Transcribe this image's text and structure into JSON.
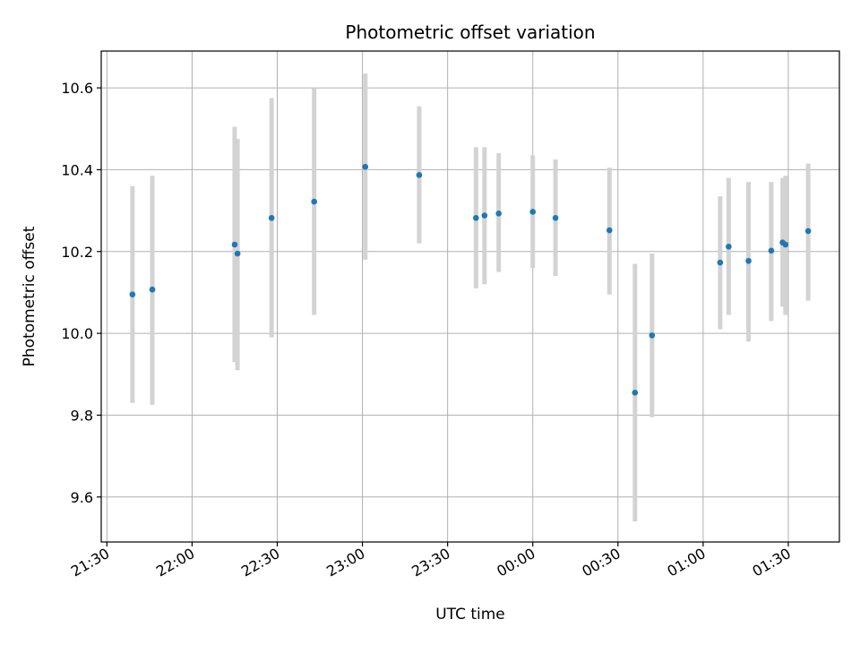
{
  "chart_data": {
    "type": "scatter",
    "title": "Photometric offset variation",
    "xlabel": "UTC time",
    "ylabel": "Photometric offset",
    "x_ticks": [
      "21:30",
      "22:00",
      "22:30",
      "23:00",
      "23:30",
      "00:00",
      "00:30",
      "01:00",
      "01:30"
    ],
    "y_ticks": [
      "9.6",
      "9.8",
      "10.0",
      "10.2",
      "10.4",
      "10.6"
    ],
    "ylim": [
      9.49,
      10.69
    ],
    "xlim": [
      "21:28",
      "01:48"
    ],
    "grid": true,
    "colors": {
      "point": "#1f77b4",
      "errorbar": "#d3d3d3",
      "grid": "#b0b0b0"
    },
    "points": [
      {
        "time": "21:39",
        "value": 10.095,
        "err_low": 9.83,
        "err_high": 10.36
      },
      {
        "time": "21:46",
        "value": 10.107,
        "err_low": 9.825,
        "err_high": 10.385
      },
      {
        "time": "22:15",
        "value": 10.217,
        "err_low": 9.93,
        "err_high": 10.505
      },
      {
        "time": "22:16",
        "value": 10.195,
        "err_low": 9.91,
        "err_high": 10.475
      },
      {
        "time": "22:28",
        "value": 10.282,
        "err_low": 9.99,
        "err_high": 10.575
      },
      {
        "time": "22:43",
        "value": 10.322,
        "err_low": 10.045,
        "err_high": 10.6
      },
      {
        "time": "23:01",
        "value": 10.407,
        "err_low": 10.18,
        "err_high": 10.635
      },
      {
        "time": "23:20",
        "value": 10.387,
        "err_low": 10.22,
        "err_high": 10.555
      },
      {
        "time": "23:40",
        "value": 10.282,
        "err_low": 10.11,
        "err_high": 10.455
      },
      {
        "time": "23:43",
        "value": 10.288,
        "err_low": 10.12,
        "err_high": 10.455
      },
      {
        "time": "23:48",
        "value": 10.293,
        "err_low": 10.15,
        "err_high": 10.44
      },
      {
        "time": "00:00",
        "value": 10.297,
        "err_low": 10.16,
        "err_high": 10.435
      },
      {
        "time": "00:08",
        "value": 10.282,
        "err_low": 10.14,
        "err_high": 10.425
      },
      {
        "time": "00:27",
        "value": 10.252,
        "err_low": 10.095,
        "err_high": 10.405
      },
      {
        "time": "00:36",
        "value": 9.855,
        "err_low": 9.54,
        "err_high": 10.17
      },
      {
        "time": "00:42",
        "value": 9.995,
        "err_low": 9.795,
        "err_high": 10.195
      },
      {
        "time": "01:06",
        "value": 10.173,
        "err_low": 10.01,
        "err_high": 10.335
      },
      {
        "time": "01:09",
        "value": 10.212,
        "err_low": 10.045,
        "err_high": 10.38
      },
      {
        "time": "01:16",
        "value": 10.177,
        "err_low": 9.98,
        "err_high": 10.37
      },
      {
        "time": "01:24",
        "value": 10.202,
        "err_low": 10.03,
        "err_high": 10.37
      },
      {
        "time": "01:28",
        "value": 10.222,
        "err_low": 10.065,
        "err_high": 10.38
      },
      {
        "time": "01:29",
        "value": 10.217,
        "err_low": 10.045,
        "err_high": 10.385
      },
      {
        "time": "01:37",
        "value": 10.25,
        "err_low": 10.08,
        "err_high": 10.415
      }
    ]
  }
}
